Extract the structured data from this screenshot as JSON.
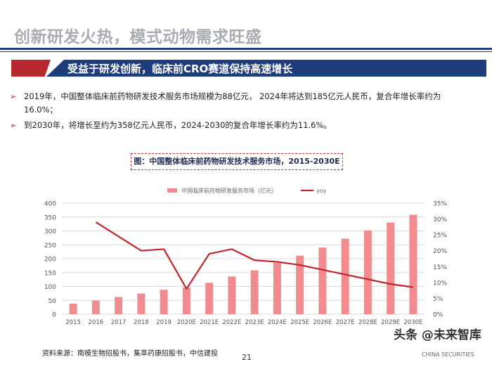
{
  "slide": {
    "title": "创新研发火热，模式动物需求旺盛",
    "banner": "受益于研发创新，临床前CRO赛道保持高速增长",
    "bullet1": "2019年，中国整体临床前药物研发技术服务市场规模为88亿元，  2024年将达到185亿元人民币，复合年增长率约为16.0%；",
    "bullet2": "到2030年，将增长至约为358亿元人民币，2024-2030的复合年增长率约为11.6%。",
    "chart_caption": "图：中国整体临床前药物研发技术服务市场，2015-2030E",
    "source": "资料来源：南模生物招股书，集萃药康招股书，中信建投",
    "page_number": "21",
    "watermark": "头条 @未来智库",
    "watermark_sub": "CHINA SECURITIES"
  },
  "colors": {
    "bar": "#f08c8f",
    "line": "#c0262b",
    "navy": "#1f3d7a",
    "red": "#b7282e"
  },
  "chart_data": {
    "type": "bar+line",
    "categories": [
      "2015",
      "2016",
      "2017",
      "2018",
      "2019",
      "2020E",
      "2021E",
      "2022E",
      "2023E",
      "2024E",
      "2025E",
      "2026E",
      "2027E",
      "2028E",
      "2029E",
      "2030E"
    ],
    "series": [
      {
        "name": "中国临床前药物研发服务市场（亿元）",
        "type": "bar",
        "axis": "left",
        "values": [
          38,
          49,
          62,
          74,
          88,
          96,
          113,
          136,
          158,
          185,
          211,
          240,
          272,
          302,
          330,
          358
        ]
      },
      {
        "name": "yoy",
        "type": "line",
        "axis": "right",
        "values": [
          null,
          0.29,
          0.245,
          0.2,
          0.205,
          0.08,
          0.19,
          0.205,
          0.17,
          0.165,
          0.155,
          0.14,
          0.125,
          0.11,
          0.095,
          0.085
        ]
      }
    ],
    "left_axis": {
      "ylim": [
        0,
        400
      ],
      "ticks": [
        "0",
        "50",
        "100",
        "150",
        "200",
        "250",
        "300",
        "350",
        "400"
      ]
    },
    "right_axis": {
      "ylim": [
        0,
        0.35
      ],
      "ticks": [
        "0%",
        "5%",
        "10%",
        "15%",
        "20%",
        "25%",
        "30%",
        "35%"
      ]
    },
    "legend_position": "top-center"
  }
}
